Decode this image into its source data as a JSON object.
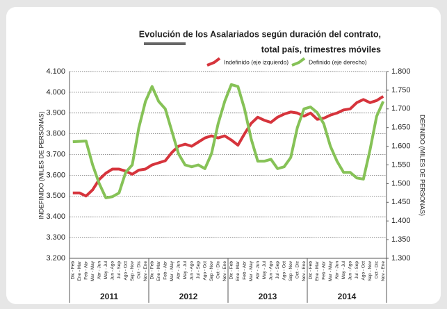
{
  "chart_data": {
    "type": "line",
    "title": "Evolución de los Asalariados según duración del contrato,",
    "subtitle": "total país, trimestres móviles",
    "y_label": "INDEFINIDO (MILES DE PERSONAS)",
    "y2_label": "DEFINIDO (MILES DE PERSONAS)",
    "categories": [
      "Dic - Feb",
      "Ene - Mar",
      "Feb - Abr",
      "Mar - May",
      "Abr - Jun",
      "May - Jul",
      "Jun - Ago",
      "Jul - Sep",
      "Ago - Oct",
      "Sep - Nov",
      "Oct - Dic",
      "Nov - Ene",
      "Dic - Feb",
      "Ene - Mar",
      "Feb - Abr",
      "Mar - May",
      "Abr - Jun",
      "May - Jul",
      "Jun - Ago",
      "Jul - Sep",
      "Ago - Oct",
      "Sep - Nov",
      "Oct - Dic",
      "Nov - Ene",
      "Dic - Feb",
      "Ene - Mar",
      "Feb - Abr",
      "Mar - May",
      "Abr - Jun",
      "May - Jul",
      "Jun - Ago",
      "Jul - Sep",
      "Ago - Oct",
      "Sep - Nov",
      "Oct - Dic",
      "Nov - Ene",
      "Dic - Feb",
      "Ene - Mar",
      "Feb - Abr",
      "Mar - May",
      "Abr - Jun",
      "May - Jul",
      "Jun - Ago",
      "Jul - Sep",
      "Ago - Oct",
      "Sep - Nov",
      "Oct - Dic",
      "Nov - Ene"
    ],
    "years": [
      "2011",
      "2012",
      "2013",
      "2014"
    ],
    "series": [
      {
        "name": "Indefinido (eje izquierdo)",
        "color": "#d6343c",
        "axis": "y",
        "values": [
          3515,
          3515,
          3500,
          3530,
          3580,
          3610,
          3630,
          3630,
          3620,
          3605,
          3625,
          3630,
          3650,
          3660,
          3670,
          3710,
          3740,
          3750,
          3740,
          3760,
          3780,
          3790,
          3780,
          3790,
          3770,
          3745,
          3800,
          3850,
          3880,
          3865,
          3855,
          3880,
          3895,
          3905,
          3900,
          3885,
          3900,
          3870,
          3875,
          3890,
          3900,
          3915,
          3920,
          3950,
          3965,
          3950,
          3960,
          3980
        ]
      },
      {
        "name": "Definido (eje derecho)",
        "color": "#86c257",
        "axis": "y2",
        "values": [
          1612,
          1613,
          1614,
          1550,
          1500,
          1462,
          1465,
          1475,
          1530,
          1550,
          1650,
          1720,
          1760,
          1720,
          1700,
          1640,
          1580,
          1550,
          1545,
          1550,
          1540,
          1580,
          1660,
          1720,
          1765,
          1760,
          1700,
          1620,
          1560,
          1560,
          1565,
          1540,
          1545,
          1570,
          1650,
          1700,
          1705,
          1690,
          1660,
          1600,
          1560,
          1530,
          1530,
          1515,
          1512,
          1590,
          1680,
          1720
        ]
      }
    ],
    "ylim": [
      3200,
      4100
    ],
    "yticks": [
      {
        "value": 3200,
        "label": "3.200"
      },
      {
        "value": 3300,
        "label": "3.300"
      },
      {
        "value": 3400,
        "label": "3.400"
      },
      {
        "value": 3500,
        "label": "3.500"
      },
      {
        "value": 3600,
        "label": "3.600"
      },
      {
        "value": 3700,
        "label": "3.700"
      },
      {
        "value": 3800,
        "label": "3.800"
      },
      {
        "value": 3900,
        "label": "3.900"
      },
      {
        "value": 4000,
        "label": "4.000"
      },
      {
        "value": 4100,
        "label": "4.100"
      }
    ],
    "y2lim": [
      1300,
      1800
    ],
    "y2ticks": [
      {
        "value": 1300,
        "label": "1.300"
      },
      {
        "value": 1350,
        "label": "1.350"
      },
      {
        "value": 1400,
        "label": "1.400"
      },
      {
        "value": 1450,
        "label": "1.450"
      },
      {
        "value": 1500,
        "label": "1.500"
      },
      {
        "value": 1550,
        "label": "1.550"
      },
      {
        "value": 1600,
        "label": "1.600"
      },
      {
        "value": 1650,
        "label": "1.650"
      },
      {
        "value": 1700,
        "label": "1.700"
      },
      {
        "value": 1750,
        "label": "1.750"
      },
      {
        "value": 1800,
        "label": "1.800"
      }
    ],
    "grid": true,
    "legend": "top-right"
  }
}
